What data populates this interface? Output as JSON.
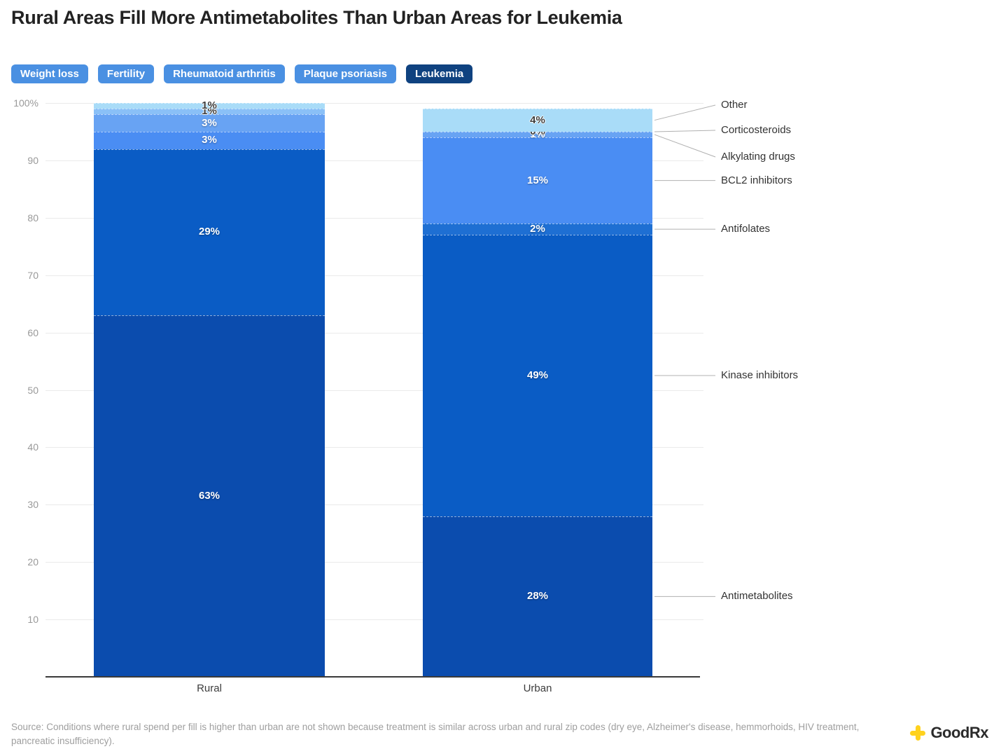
{
  "title": "Rural Areas Fill More Antimetabolites Than Urban Areas for Leukemia",
  "tabs": [
    {
      "label": "Weight loss",
      "selected": false
    },
    {
      "label": "Fertility",
      "selected": false
    },
    {
      "label": "Rheumatoid arthritis",
      "selected": false
    },
    {
      "label": "Plaque psoriasis",
      "selected": false
    },
    {
      "label": "Leukemia",
      "selected": true
    }
  ],
  "colors": {
    "tab": "#4a90e2",
    "tab_selected": "#0f4280",
    "grid": "#eaeaea",
    "axis": "#3a3a3a"
  },
  "chart_data": {
    "type": "bar",
    "stacked": true,
    "title": "Rural Areas Fill More Antimetabolites Than Urban Areas for Leukemia",
    "categories": [
      "Rural",
      "Urban"
    ],
    "series": [
      {
        "name": "Antimetabolites",
        "values": [
          63,
          28
        ],
        "labels": [
          "63%",
          "28%"
        ],
        "color": "#0b4cae"
      },
      {
        "name": "Kinase inhibitors",
        "values": [
          29,
          49
        ],
        "labels": [
          "29%",
          "49%"
        ],
        "color": "#0a5cc5"
      },
      {
        "name": "Antifolates",
        "values": [
          0,
          2
        ],
        "labels": [
          null,
          "2%"
        ],
        "color": "#1e6fd3"
      },
      {
        "name": "BCL2 inhibitors",
        "values": [
          3,
          15
        ],
        "labels": [
          "3%",
          "15%"
        ],
        "color": "#4a8df3"
      },
      {
        "name": "Alkylating drugs",
        "values": [
          3,
          1
        ],
        "labels": [
          "3%",
          "1%"
        ],
        "color": "#68a3f3"
      },
      {
        "name": "Corticosteroids",
        "values": [
          1,
          0
        ],
        "labels": [
          "1%",
          "0%"
        ],
        "color": "#8ac0f7"
      },
      {
        "name": "Other",
        "values": [
          1,
          4
        ],
        "labels": [
          "1%",
          "4%"
        ],
        "color": "#a9dcf8"
      }
    ],
    "xlabel": "",
    "ylabel": "",
    "ylim": [
      0,
      100
    ],
    "yticks": [
      "100%",
      "90",
      "80",
      "70",
      "60",
      "50",
      "40",
      "30",
      "20",
      "10"
    ],
    "grid": true,
    "legend_position": "right"
  },
  "footer": {
    "source": "Source: Conditions where rural spend per fill is higher than urban are not shown because treatment is similar across urban and rural zip codes (dry eye, Alzheimer's disease, hemmorhoids, HIV treatment, pancreatic insufficiency).",
    "brand_good": "Good",
    "brand_rx": "Rx"
  }
}
